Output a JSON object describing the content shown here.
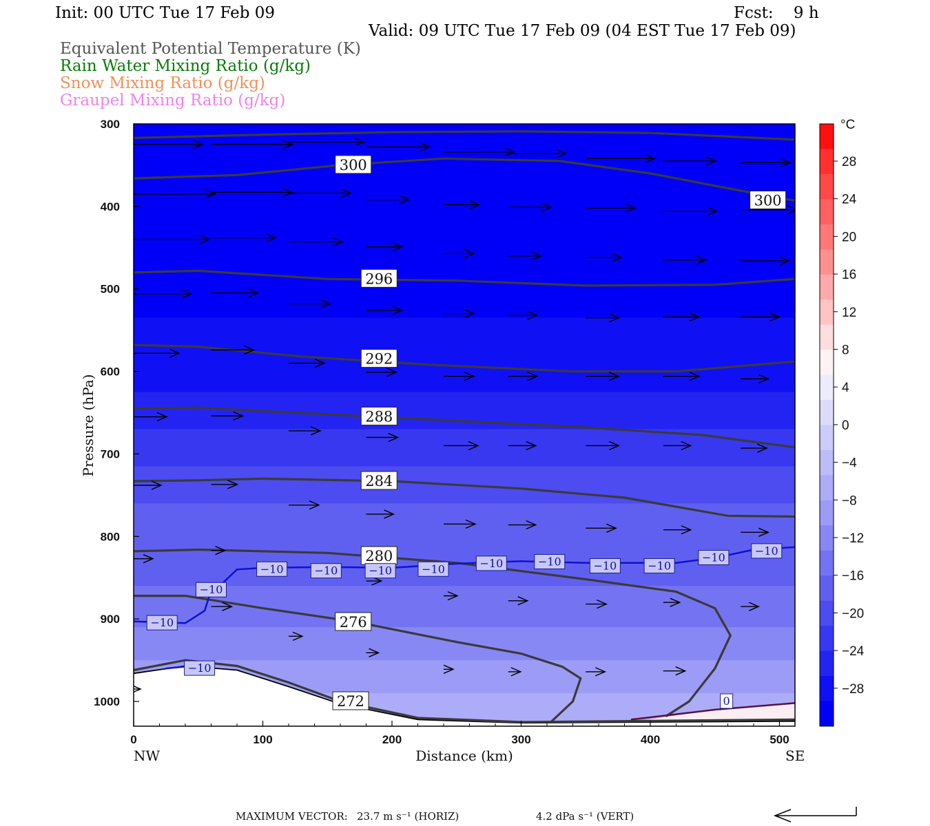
{
  "header": {
    "init": "Init: 00 UTC Tue 17 Feb 09",
    "fcst": "Fcst:    9 h",
    "valid": "Valid: 09 UTC Tue 17 Feb 09 (04 EST Tue 17 Feb 09)"
  },
  "legend": [
    {
      "label": "Equivalent Potential Temperature (K)",
      "color": "#555555"
    },
    {
      "label": "Rain Water Mixing Ratio (g/kg)",
      "color": "#0a7a0a"
    },
    {
      "label": "Snow Mixing Ratio (g/kg)",
      "color": "#f0905a"
    },
    {
      "label": "Graupel Mixing Ratio (g/kg)",
      "color": "#ee82ee"
    }
  ],
  "footer": {
    "max_vector_label": "MAXIMUM VECTOR:",
    "horiz": "23.7 m s⁻¹ (HORIZ)",
    "vert": "4.2 dPa s⁻¹ (VERT)"
  },
  "chart_data": {
    "type": "cross-section contour",
    "xlabel": "Distance (km)",
    "ylabel": "Pressure (hPa)",
    "xlim": [
      0,
      512
    ],
    "ylim": [
      1030,
      300
    ],
    "x_ticks": [
      "0",
      "100",
      "200",
      "300",
      "400",
      "500"
    ],
    "y_ticks": [
      "300",
      "400",
      "500",
      "600",
      "700",
      "800",
      "900",
      "1000"
    ],
    "x_end_labels": {
      "left": "NW",
      "right": "SE"
    },
    "colorbar": {
      "unit": "°C",
      "ticks": [
        "28",
        "24",
        "20",
        "16",
        "12",
        "8",
        "4",
        "0",
        "-4",
        "-8",
        "-12",
        "-16",
        "-20",
        "-24",
        "-28"
      ],
      "colors": [
        "#ff1010",
        "#ff3030",
        "#ff4848",
        "#ff6060",
        "#ff7878",
        "#ff9090",
        "#ffaaaa",
        "#ffc4c4",
        "#ffdede",
        "#fff2f2",
        "#ececfc",
        "#dcdcfa",
        "#ccccfa",
        "#bcbcf8",
        "#acacf8",
        "#9c9cf6",
        "#8888f4",
        "#7474f2",
        "#6060f0",
        "#4c4cf0",
        "#3838f0",
        "#2424f2",
        "#1010f4",
        "#0000f8"
      ]
    },
    "theta_e_contours": [
      {
        "value": 300,
        "label": "300",
        "points": [
          [
            0,
            317
          ],
          [
            100,
            313
          ],
          [
            200,
            310
          ],
          [
            300,
            309
          ],
          [
            400,
            311
          ],
          [
            512,
            319
          ]
        ]
      },
      {
        "value": 300,
        "label": "300",
        "points": [
          [
            0,
            366
          ],
          [
            80,
            362
          ],
          [
            160,
            350
          ],
          [
            240,
            342
          ],
          [
            330,
            345
          ],
          [
            400,
            360
          ],
          [
            460,
            378
          ],
          [
            512,
            393
          ]
        ]
      },
      {
        "value": 296,
        "label": "296",
        "points": [
          [
            0,
            480
          ],
          [
            50,
            478
          ],
          [
            150,
            488
          ],
          [
            250,
            490
          ],
          [
            350,
            496
          ],
          [
            450,
            495
          ],
          [
            512,
            488
          ]
        ]
      },
      {
        "value": 292,
        "label": "292",
        "points": [
          [
            0,
            568
          ],
          [
            50,
            570
          ],
          [
            130,
            582
          ],
          [
            230,
            592
          ],
          [
            340,
            600
          ],
          [
            420,
            600
          ],
          [
            512,
            588
          ]
        ]
      },
      {
        "value": 288,
        "label": "288",
        "points": [
          [
            0,
            645
          ],
          [
            50,
            644
          ],
          [
            150,
            652
          ],
          [
            250,
            660
          ],
          [
            350,
            668
          ],
          [
            440,
            677
          ],
          [
            512,
            692
          ]
        ]
      },
      {
        "value": 284,
        "label": "284",
        "points": [
          [
            0,
            733
          ],
          [
            50,
            732
          ],
          [
            100,
            730
          ],
          [
            200,
            733
          ],
          [
            300,
            742
          ],
          [
            380,
            753
          ],
          [
            460,
            775
          ],
          [
            512,
            776
          ]
        ]
      },
      {
        "value": 280,
        "label": "280",
        "points": [
          [
            0,
            818
          ],
          [
            50,
            816
          ],
          [
            150,
            820
          ],
          [
            250,
            832
          ],
          [
            350,
            852
          ],
          [
            420,
            867
          ],
          [
            450,
            887
          ],
          [
            462,
            920
          ],
          [
            450,
            960
          ],
          [
            430,
            1000
          ],
          [
            412,
            1018
          ]
        ]
      },
      {
        "value": 276,
        "label": "276",
        "points": [
          [
            0,
            872
          ],
          [
            40,
            872
          ],
          [
            100,
            887
          ],
          [
            170,
            903
          ],
          [
            250,
            928
          ],
          [
            300,
            942
          ],
          [
            332,
            958
          ],
          [
            346,
            972
          ],
          [
            340,
            1000
          ],
          [
            323,
            1025
          ]
        ]
      },
      {
        "value": 272,
        "label": "272",
        "points": [
          [
            0,
            962
          ],
          [
            40,
            950
          ],
          [
            80,
            957
          ],
          [
            120,
            977
          ],
          [
            160,
            1000
          ],
          [
            220,
            1020
          ],
          [
            300,
            1025
          ],
          [
            512,
            1022
          ]
        ]
      }
    ],
    "theta_e_label_positions": [
      {
        "label": "300",
        "x": 170,
        "p": 350
      },
      {
        "label": "300",
        "x": 491,
        "p": 393
      },
      {
        "label": "296",
        "x": 190,
        "p": 488
      },
      {
        "label": "292",
        "x": 190,
        "p": 585
      },
      {
        "label": "288",
        "x": 190,
        "p": 655
      },
      {
        "label": "284",
        "x": 190,
        "p": 733
      },
      {
        "label": "280",
        "x": 190,
        "p": 824
      },
      {
        "label": "276",
        "x": 170,
        "p": 904
      },
      {
        "label": "272",
        "x": 168,
        "p": 1000
      }
    ],
    "temperature_contours": [
      {
        "value": -10,
        "points": [
          [
            0,
            903
          ],
          [
            40,
            905
          ],
          [
            55,
            890
          ],
          [
            60,
            865
          ],
          [
            70,
            855
          ],
          [
            80,
            840
          ],
          [
            100,
            838
          ],
          [
            150,
            837
          ],
          [
            200,
            838
          ],
          [
            250,
            833
          ],
          [
            300,
            830
          ],
          [
            350,
            832
          ],
          [
            420,
            832
          ],
          [
            450,
            826
          ],
          [
            480,
            816
          ],
          [
            512,
            813
          ]
        ]
      },
      {
        "value": -10,
        "points": [
          [
            25,
            960
          ],
          [
            45,
            957
          ],
          [
            60,
            961
          ]
        ]
      },
      {
        "value": 0,
        "points": [
          [
            385,
            1022
          ],
          [
            450,
            1010
          ],
          [
            512,
            1002
          ]
        ]
      }
    ],
    "temperature_labels": [
      {
        "label": "-10",
        "x": 22,
        "p": 905
      },
      {
        "label": "-10",
        "x": 60,
        "p": 865
      },
      {
        "label": "-10",
        "x": 107,
        "p": 840
      },
      {
        "label": "-10",
        "x": 149,
        "p": 842
      },
      {
        "label": "-10",
        "x": 191,
        "p": 842
      },
      {
        "label": "-10",
        "x": 232,
        "p": 840
      },
      {
        "label": "-10",
        "x": 277,
        "p": 833
      },
      {
        "label": "-10",
        "x": 322,
        "p": 831
      },
      {
        "label": "-10",
        "x": 365,
        "p": 836
      },
      {
        "label": "-10",
        "x": 407,
        "p": 836
      },
      {
        "label": "-10",
        "x": 449,
        "p": 826
      },
      {
        "label": "-10",
        "x": 490,
        "p": 818
      },
      {
        "label": "-10",
        "x": 51,
        "p": 960
      },
      {
        "label": "0",
        "x": 459,
        "p": 1000
      }
    ],
    "temperature_field_bands_degC": [
      {
        "p_top": 300,
        "p_bot": 495,
        "t": -30
      },
      {
        "p_top": 495,
        "p_bot": 535,
        "t": -28
      },
      {
        "p_top": 535,
        "p_bot": 580,
        "t": -26
      },
      {
        "p_top": 580,
        "p_bot": 625,
        "t": -24
      },
      {
        "p_top": 625,
        "p_bot": 670,
        "t": -22
      },
      {
        "p_top": 670,
        "p_bot": 715,
        "t": -20
      },
      {
        "p_top": 715,
        "p_bot": 760,
        "t": -18
      },
      {
        "p_top": 760,
        "p_bot": 810,
        "t": -16
      },
      {
        "p_top": 810,
        "p_bot": 860,
        "t": -14
      },
      {
        "p_top": 860,
        "p_bot": 910,
        "t": -12
      },
      {
        "p_top": 910,
        "p_bot": 950,
        "t": -10
      },
      {
        "p_top": 950,
        "p_bot": 990,
        "t": -8
      },
      {
        "p_top": 990,
        "p_bot": 1030,
        "t": -6
      }
    ],
    "wind_vectors": [
      [
        0,
        325,
        100
      ],
      [
        60,
        325,
        118
      ],
      [
        120,
        322,
        110
      ],
      [
        180,
        328,
        92
      ],
      [
        240,
        334,
        102
      ],
      [
        290,
        336,
        84
      ],
      [
        350,
        342,
        100
      ],
      [
        410,
        345,
        76
      ],
      [
        470,
        347,
        72
      ],
      [
        0,
        385,
        118
      ],
      [
        60,
        383,
        118
      ],
      [
        120,
        384,
        90
      ],
      [
        180,
        392,
        62
      ],
      [
        240,
        398,
        52
      ],
      [
        290,
        401,
        62
      ],
      [
        350,
        402,
        72
      ],
      [
        410,
        406,
        78
      ],
      [
        470,
        404,
        82
      ],
      [
        0,
        440,
        110
      ],
      [
        60,
        438,
        94
      ],
      [
        120,
        443,
        78
      ],
      [
        180,
        449,
        52
      ],
      [
        240,
        457,
        44
      ],
      [
        290,
        460,
        48
      ],
      [
        350,
        462,
        52
      ],
      [
        410,
        465,
        62
      ],
      [
        470,
        466,
        70
      ],
      [
        0,
        506,
        84
      ],
      [
        60,
        505,
        68
      ],
      [
        120,
        518,
        60
      ],
      [
        180,
        526,
        52
      ],
      [
        240,
        530,
        44
      ],
      [
        290,
        532,
        42
      ],
      [
        350,
        535,
        48
      ],
      [
        410,
        534,
        52
      ],
      [
        470,
        534,
        56
      ],
      [
        0,
        578,
        66
      ],
      [
        60,
        574,
        62
      ],
      [
        120,
        590,
        52
      ],
      [
        180,
        601,
        44
      ],
      [
        240,
        606,
        44
      ],
      [
        290,
        606,
        42
      ],
      [
        350,
        606,
        48
      ],
      [
        410,
        606,
        52
      ],
      [
        470,
        609,
        40
      ],
      [
        0,
        655,
        48
      ],
      [
        60,
        654,
        46
      ],
      [
        120,
        672,
        46
      ],
      [
        180,
        680,
        46
      ],
      [
        240,
        690,
        50
      ],
      [
        290,
        690,
        40
      ],
      [
        350,
        690,
        48
      ],
      [
        410,
        690,
        40
      ],
      [
        470,
        693,
        38
      ],
      [
        0,
        738,
        40
      ],
      [
        60,
        737,
        38
      ],
      [
        120,
        762,
        44
      ],
      [
        180,
        773,
        40
      ],
      [
        240,
        785,
        46
      ],
      [
        290,
        786,
        40
      ],
      [
        350,
        790,
        44
      ],
      [
        410,
        792,
        40
      ],
      [
        470,
        795,
        40
      ],
      [
        0,
        827,
        28
      ],
      [
        60,
        817,
        20
      ],
      [
        180,
        854,
        22
      ],
      [
        240,
        872,
        20
      ],
      [
        290,
        878,
        28
      ],
      [
        350,
        882,
        30
      ],
      [
        410,
        880,
        24
      ],
      [
        470,
        885,
        26
      ],
      [
        60,
        885,
        30
      ],
      [
        120,
        921,
        20
      ],
      [
        180,
        941,
        18
      ],
      [
        240,
        961,
        14
      ],
      [
        290,
        964,
        18
      ],
      [
        350,
        964,
        28
      ],
      [
        410,
        963,
        32
      ],
      [
        0,
        985,
        10
      ]
    ],
    "cross_section_endpoints": {
      "left": "NW",
      "right": "SE"
    }
  }
}
